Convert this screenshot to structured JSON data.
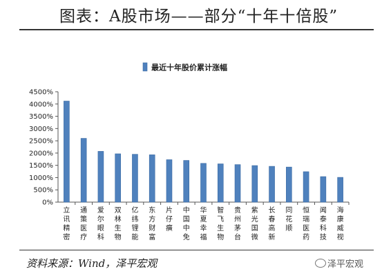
{
  "title": "图表：A股市场——部分“十年十倍股”",
  "source": "资料来源：Wind，泽平宏观",
  "watermark": "泽平宏观",
  "colors": {
    "bar": "#4f81bd",
    "bar_edge": "#3a6aa3",
    "axis": "#555555"
  },
  "chart_data": {
    "type": "bar",
    "title": "",
    "xlabel": "",
    "ylabel": "",
    "ylim": [
      0,
      4500
    ],
    "yticks": [
      0,
      500,
      1000,
      1500,
      2000,
      2500,
      3000,
      3500,
      4000,
      4500
    ],
    "ytick_format": "percent",
    "legend": "top-center",
    "grid": false,
    "categories": [
      "立讯精密",
      "通策医疗",
      "爱尔眼科",
      "双林生物",
      "亿纬锂能",
      "东方财富",
      "片仔癀",
      "中国中免",
      "华夏幸福",
      "智飞生物",
      "贵州茅台",
      "紫光国微",
      "长春高新",
      "同花顺",
      "恒瑞医药",
      "闻泰科技",
      "海康威视"
    ],
    "series": [
      {
        "name": "最近十年股价累计涨幅",
        "values": [
          4120,
          2600,
          2070,
          1970,
          1950,
          1930,
          1730,
          1700,
          1580,
          1560,
          1530,
          1490,
          1460,
          1430,
          1240,
          1040,
          1010
        ]
      }
    ]
  }
}
